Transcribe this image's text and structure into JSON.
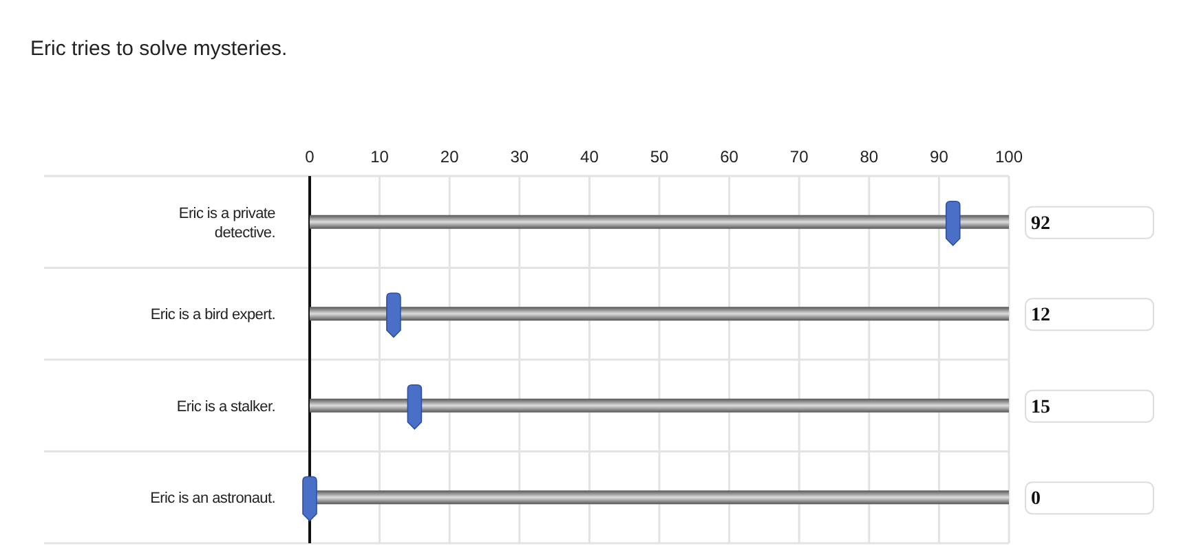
{
  "chart_data": {
    "type": "scatter",
    "orientation": "horizontal",
    "title": "Eric tries to solve mysteries.",
    "categories": [
      "Eric is a private detective.",
      "Eric is a bird expert.",
      "Eric is a stalker.",
      "Eric is an astronaut."
    ],
    "values": [
      92,
      12,
      15,
      0
    ],
    "color": "#4a6fc7",
    "xlim": [
      0,
      100
    ],
    "xticks": [
      0,
      10,
      20,
      30,
      40,
      50,
      60,
      70,
      80,
      90,
      100
    ],
    "grid": "x",
    "annotations": [
      "92",
      "12",
      "15",
      "0"
    ]
  }
}
